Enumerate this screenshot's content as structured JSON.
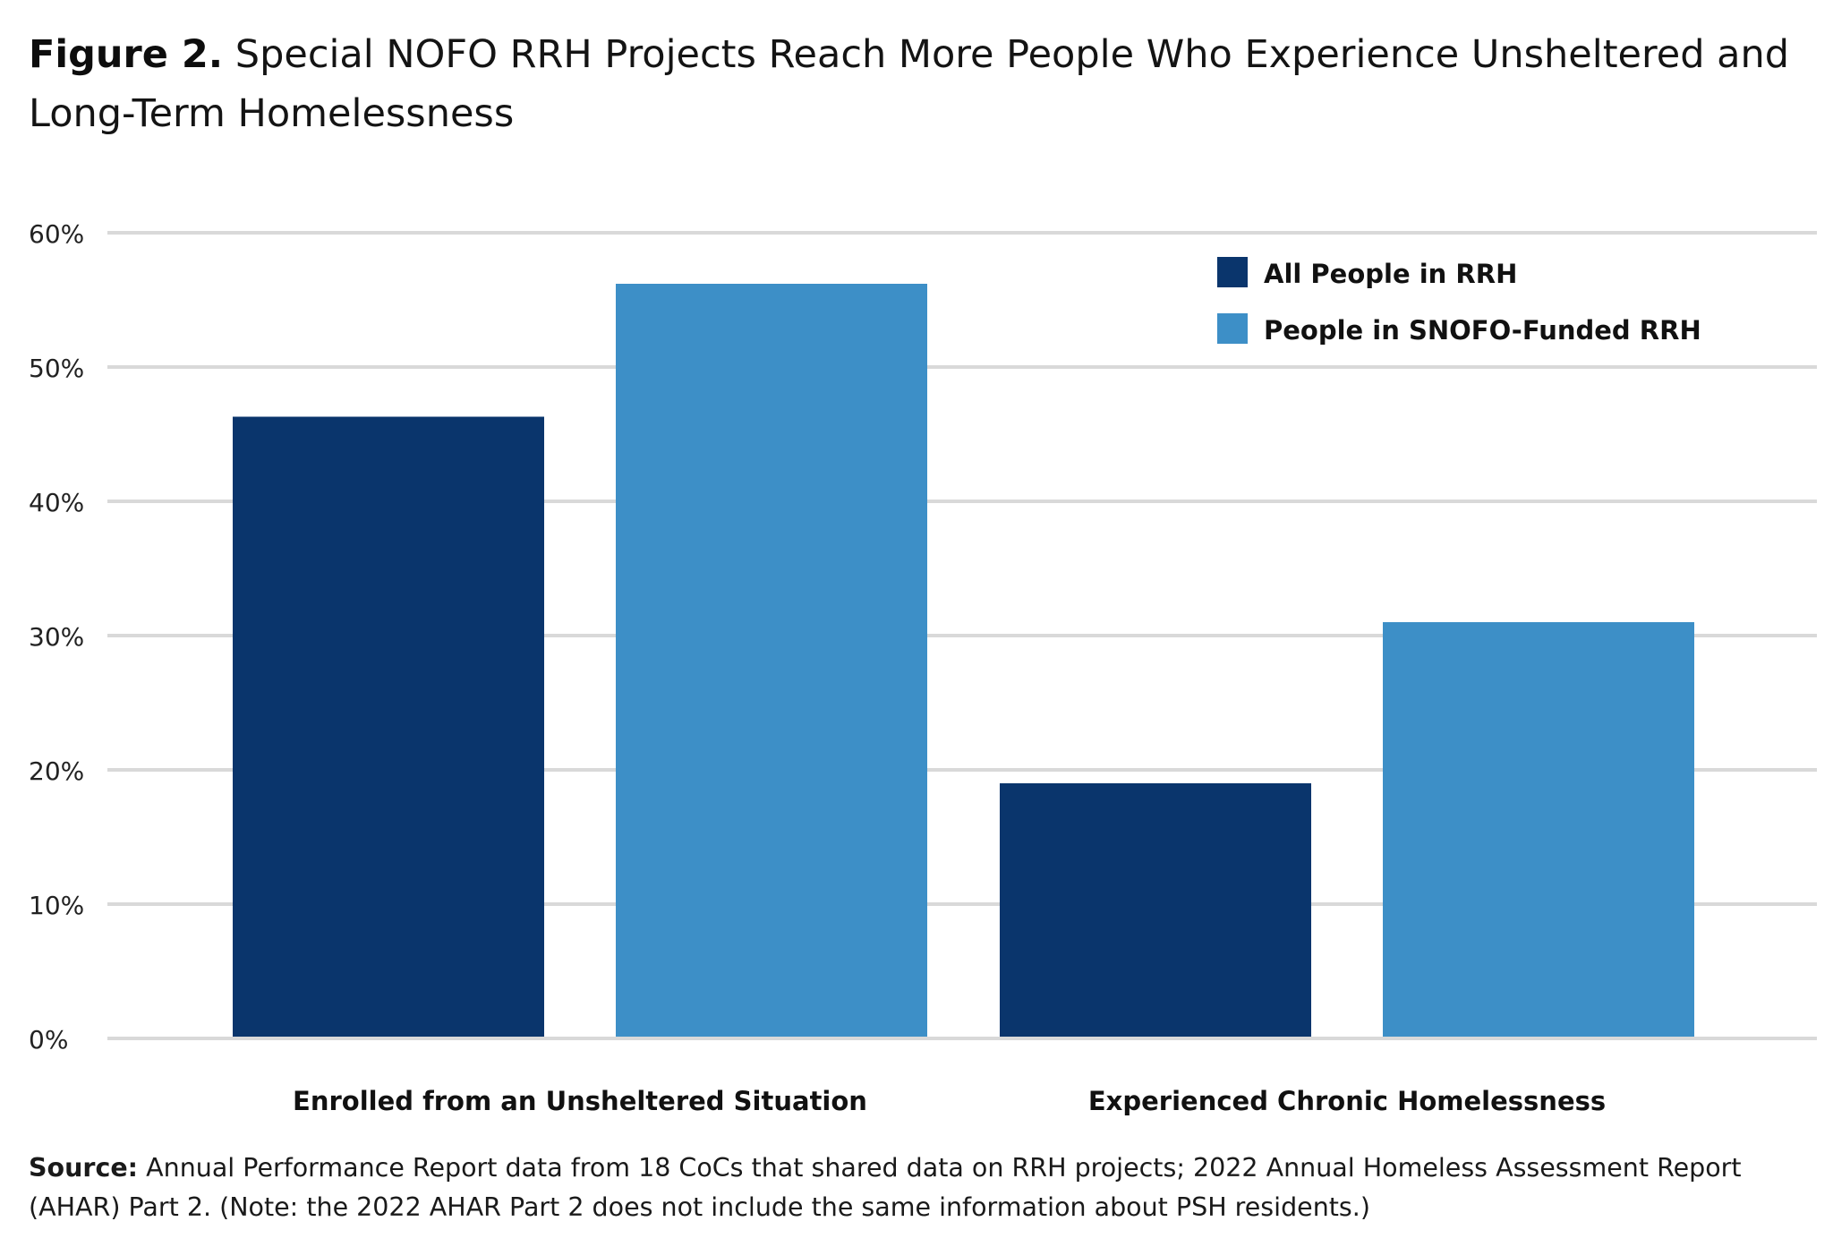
{
  "title": {
    "lead": "Figure 2.",
    "text": "Special NOFO RRH Projects Reach More People Who Experience Unsheltered and Long-Term Homelessness"
  },
  "source": {
    "lead": "Source:",
    "text": "Annual Performance Report data from 18 CoCs that shared data on RRH projects; 2022 Annual Homeless Assessment Report (AHAR) Part 2. (Note: the 2022 AHAR Part 2 does not include the same information about PSH residents.)"
  },
  "colors": {
    "all_people": "#0a356c",
    "snofo": "#3d8fc7",
    "grid": "#d9d9d9",
    "text": "#111111"
  },
  "chart_data": {
    "type": "bar",
    "title": "Special NOFO RRH Projects Reach More People Who Experience Unsheltered and Long-Term Homelessness",
    "xlabel": "",
    "ylabel": "",
    "categories": [
      "Enrolled from an Unsheltered Situation",
      "Experienced Chronic Homelessness"
    ],
    "series": [
      {
        "name": "All People in RRH",
        "values": [
          46.3,
          19.0
        ]
      },
      {
        "name": "People in SNOFO-Funded RRH",
        "values": [
          56.2,
          31.0
        ]
      }
    ],
    "ylim": [
      0,
      60
    ],
    "yticks": [
      0,
      10,
      20,
      30,
      40,
      50,
      60
    ],
    "ytick_labels": [
      "0%",
      "10%",
      "20%",
      "30%",
      "40%",
      "50%",
      "60%"
    ],
    "grid": true,
    "legend_position": "top-right"
  }
}
